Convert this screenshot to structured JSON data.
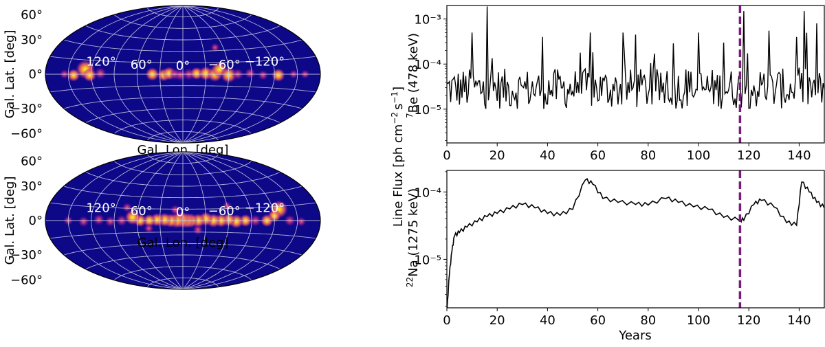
{
  "chart_data": [
    {
      "type": "heatmap",
      "projection": "aitoff",
      "id": "skymap-be7",
      "xlabel": "Gal. Lon. [deg]",
      "ylabel": "Gal. Lat. [deg]",
      "lon_tick_labels": [
        {
          "lon": -120,
          "label": "−120°"
        },
        {
          "lon": -60,
          "label": "−60°"
        },
        {
          "lon": 0,
          "label": "0°"
        },
        {
          "lon": 60,
          "label": "60°"
        },
        {
          "lon": 120,
          "label": "120°"
        }
      ],
      "lat_tick_labels": [
        {
          "lat": 60,
          "label": "60°"
        },
        {
          "lat": 30,
          "label": "30°"
        },
        {
          "lat": 0,
          "label": "0°"
        },
        {
          "lat": -30,
          "label": "−30°"
        },
        {
          "lat": -60,
          "label": "−60°"
        }
      ],
      "sources": [
        {
          "lon": 128,
          "lat": 5,
          "intensity": 1.0
        },
        {
          "lon": 122,
          "lat": -1,
          "intensity": 0.55
        },
        {
          "lon": 108,
          "lat": 1,
          "intensity": 0.45
        },
        {
          "lon": 143,
          "lat": -1,
          "intensity": 0.5
        },
        {
          "lon": 155,
          "lat": 0,
          "intensity": 0.25
        },
        {
          "lon": 40,
          "lat": 0,
          "intensity": 0.55
        },
        {
          "lon": 25,
          "lat": -1,
          "intensity": 0.5
        },
        {
          "lon": 18,
          "lat": 1,
          "intensity": 0.55
        },
        {
          "lon": 10,
          "lat": 0,
          "intensity": 0.4
        },
        {
          "lon": 3,
          "lat": -1,
          "intensity": 0.45
        },
        {
          "lon": -8,
          "lat": 0,
          "intensity": 0.45
        },
        {
          "lon": -18,
          "lat": 1,
          "intensity": 0.5
        },
        {
          "lon": -30,
          "lat": 1,
          "intensity": 0.6
        },
        {
          "lon": -42,
          "lat": 0,
          "intensity": 0.7
        },
        {
          "lon": -48,
          "lat": 6,
          "intensity": 0.7
        },
        {
          "lon": -60,
          "lat": -1,
          "intensity": 0.75
        },
        {
          "lon": -72,
          "lat": 0,
          "intensity": 0.4
        },
        {
          "lon": -88,
          "lat": 1,
          "intensity": 0.35
        },
        {
          "lon": -105,
          "lat": -1,
          "intensity": 0.3
        },
        {
          "lon": -125,
          "lat": -1,
          "intensity": 0.55
        },
        {
          "lon": -145,
          "lat": 0,
          "intensity": 0.2
        },
        {
          "lon": -160,
          "lat": 0,
          "intensity": 0.2
        },
        {
          "lon": -48,
          "lat": 34,
          "intensity": 0.2
        }
      ]
    },
    {
      "type": "heatmap",
      "projection": "aitoff",
      "id": "skymap-na22",
      "xlabel": "Gal. Lon. [deg]",
      "ylabel": "Gal. Lat. [deg]",
      "lon_tick_labels": [
        {
          "lon": -120,
          "label": "−120°"
        },
        {
          "lon": -60,
          "label": "−60°"
        },
        {
          "lon": 0,
          "label": "0°"
        },
        {
          "lon": 60,
          "label": "60°"
        },
        {
          "lon": 120,
          "label": "120°"
        }
      ],
      "lat_tick_labels": [
        {
          "lat": 60,
          "label": "60°"
        },
        {
          "lat": 30,
          "label": "30°"
        },
        {
          "lat": 0,
          "label": "0°"
        },
        {
          "lat": -30,
          "label": "−30°"
        },
        {
          "lat": -60,
          "label": "−60°"
        }
      ],
      "sources": [
        {
          "lon": -128,
          "lat": 12,
          "intensity": 0.9
        },
        {
          "lon": -120,
          "lat": 5,
          "intensity": 0.5
        },
        {
          "lon": -140,
          "lat": 0,
          "intensity": 0.4
        },
        {
          "lon": -110,
          "lat": 0,
          "intensity": 0.5
        },
        {
          "lon": -95,
          "lat": 0,
          "intensity": 0.45
        },
        {
          "lon": -82,
          "lat": 0,
          "intensity": 0.5
        },
        {
          "lon": -70,
          "lat": -1,
          "intensity": 0.6
        },
        {
          "lon": -60,
          "lat": 1,
          "intensity": 0.55
        },
        {
          "lon": -50,
          "lat": 0,
          "intensity": 0.55
        },
        {
          "lon": -40,
          "lat": 0,
          "intensity": 0.6
        },
        {
          "lon": -30,
          "lat": 2,
          "intensity": 0.6
        },
        {
          "lon": -20,
          "lat": 0,
          "intensity": 0.6
        },
        {
          "lon": -10,
          "lat": 0,
          "intensity": 0.65
        },
        {
          "lon": -4,
          "lat": 0,
          "intensity": 0.7
        },
        {
          "lon": 2,
          "lat": 1,
          "intensity": 0.75
        },
        {
          "lon": 8,
          "lat": 0,
          "intensity": 0.7
        },
        {
          "lon": 16,
          "lat": 0,
          "intensity": 0.6
        },
        {
          "lon": 24,
          "lat": 1,
          "intensity": 0.6
        },
        {
          "lon": 34,
          "lat": 1,
          "intensity": 0.55
        },
        {
          "lon": 44,
          "lat": 0,
          "intensity": 0.5
        },
        {
          "lon": 56,
          "lat": 0,
          "intensity": 0.5
        },
        {
          "lon": 66,
          "lat": 4,
          "intensity": 0.7
        },
        {
          "lon": 80,
          "lat": 0,
          "intensity": 0.4
        },
        {
          "lon": 95,
          "lat": -1,
          "intensity": 0.35
        },
        {
          "lon": 110,
          "lat": 1,
          "intensity": 0.4
        },
        {
          "lon": 130,
          "lat": -1,
          "intensity": 0.35
        },
        {
          "lon": 150,
          "lat": 0,
          "intensity": 0.25
        },
        {
          "lon": -155,
          "lat": -1,
          "intensity": 0.25
        },
        {
          "lon": -20,
          "lat": -12,
          "intensity": 0.3
        },
        {
          "lon": 10,
          "lat": 14,
          "intensity": 0.3
        },
        {
          "lon": 45,
          "lat": -10,
          "intensity": 0.25
        },
        {
          "lon": -60,
          "lat": 18,
          "intensity": 0.25
        },
        {
          "lon": 75,
          "lat": 16,
          "intensity": 0.25
        }
      ]
    },
    {
      "type": "line",
      "id": "lightcurve-be7",
      "xlim": [
        0,
        150
      ],
      "ylim_log10": [
        -5.75,
        -2.7
      ],
      "yscale": "log",
      "xticks": [
        0,
        20,
        40,
        60,
        80,
        100,
        120,
        140
      ],
      "yticks": [
        {
          "value": 1e-05,
          "label": "10⁻⁵"
        },
        {
          "value": 0.0001,
          "label": "10⁻⁴"
        },
        {
          "value": 0.001,
          "label": "10⁻³"
        }
      ],
      "ylabel_prefix": "7",
      "ylabel_text": "Be (478 keV)",
      "marker_line_x": 116.5,
      "marker_color": "#7b1a7d",
      "series_color": "#000000",
      "series_style": "spiky flux ~1e-5 to 1e-3 with frequent spikes",
      "peaks": [
        {
          "x": 16,
          "y": 0.0019
        },
        {
          "x": 10,
          "y": 0.0005
        },
        {
          "x": 38,
          "y": 0.0004
        },
        {
          "x": 57,
          "y": 0.0005
        },
        {
          "x": 70,
          "y": 0.0005
        },
        {
          "x": 75,
          "y": 0.00045
        },
        {
          "x": 100,
          "y": 0.0005
        },
        {
          "x": 110,
          "y": 0.0003
        },
        {
          "x": 128,
          "y": 0.00055
        },
        {
          "x": 139,
          "y": 0.0004
        },
        {
          "x": 142,
          "y": 0.0015
        },
        {
          "x": 147,
          "y": 0.0008
        },
        {
          "x": 118,
          "y": 0.0015
        }
      ]
    },
    {
      "type": "line",
      "id": "lightcurve-na22",
      "xlim": [
        0,
        150
      ],
      "ylim_log10": [
        -5.72,
        -3.68
      ],
      "yscale": "log",
      "xticks": [
        0,
        20,
        40,
        60,
        80,
        100,
        120,
        140
      ],
      "yticks": [
        {
          "value": 1e-05,
          "label": "10⁻⁵"
        },
        {
          "value": 0.0001,
          "label": "10⁻⁴"
        }
      ],
      "xlabel": "Years",
      "ylabel_prefix": "22",
      "ylabel_text": "Na (1275 keV)",
      "marker_line_x": 116.5,
      "marker_color": "#7b1a7d",
      "series_color": "#000000",
      "points": [
        {
          "x": 0,
          "y": 1.6e-06
        },
        {
          "x": 1,
          "y": 6e-06
        },
        {
          "x": 2,
          "y": 1.3e-05
        },
        {
          "x": 3,
          "y": 2.2e-05
        },
        {
          "x": 5,
          "y": 2.5e-05
        },
        {
          "x": 8,
          "y": 3e-05
        },
        {
          "x": 12,
          "y": 3.6e-05
        },
        {
          "x": 16,
          "y": 4.3e-05
        },
        {
          "x": 20,
          "y": 4.8e-05
        },
        {
          "x": 25,
          "y": 5.6e-05
        },
        {
          "x": 30,
          "y": 6.5e-05
        },
        {
          "x": 35,
          "y": 5.8e-05
        },
        {
          "x": 40,
          "y": 4.8e-05
        },
        {
          "x": 45,
          "y": 4.5e-05
        },
        {
          "x": 50,
          "y": 5.5e-05
        },
        {
          "x": 55,
          "y": 0.00015
        },
        {
          "x": 58,
          "y": 0.00013
        },
        {
          "x": 62,
          "y": 8e-05
        },
        {
          "x": 68,
          "y": 7e-05
        },
        {
          "x": 75,
          "y": 6.5e-05
        },
        {
          "x": 80,
          "y": 6.4e-05
        },
        {
          "x": 87,
          "y": 8e-05
        },
        {
          "x": 92,
          "y": 7e-05
        },
        {
          "x": 98,
          "y": 6e-05
        },
        {
          "x": 104,
          "y": 5.5e-05
        },
        {
          "x": 110,
          "y": 4.2e-05
        },
        {
          "x": 116,
          "y": 3.8e-05
        },
        {
          "x": 118,
          "y": 3.8e-05
        },
        {
          "x": 122,
          "y": 6.5e-05
        },
        {
          "x": 125,
          "y": 7.5e-05
        },
        {
          "x": 130,
          "y": 6e-05
        },
        {
          "x": 135,
          "y": 3.5e-05
        },
        {
          "x": 139,
          "y": 3.2e-05
        },
        {
          "x": 141,
          "y": 0.00014
        },
        {
          "x": 144,
          "y": 0.0001
        },
        {
          "x": 147,
          "y": 7e-05
        },
        {
          "x": 150,
          "y": 5.8e-05
        }
      ]
    }
  ],
  "shared": {
    "ylabel_top_line": "Line Flux [ph cm⁻² s⁻¹]",
    "ylabel_line_flux": "Line Flux [ph cm",
    "ylabel_units_cm": "−2",
    "ylabel_units_s": "s",
    "ylabel_units_s_exp": "−1",
    "ylabel_close": "]"
  },
  "colors": {
    "map_background": "#0d0887",
    "graticule": "#d0d0e8",
    "axis": "#000000"
  }
}
